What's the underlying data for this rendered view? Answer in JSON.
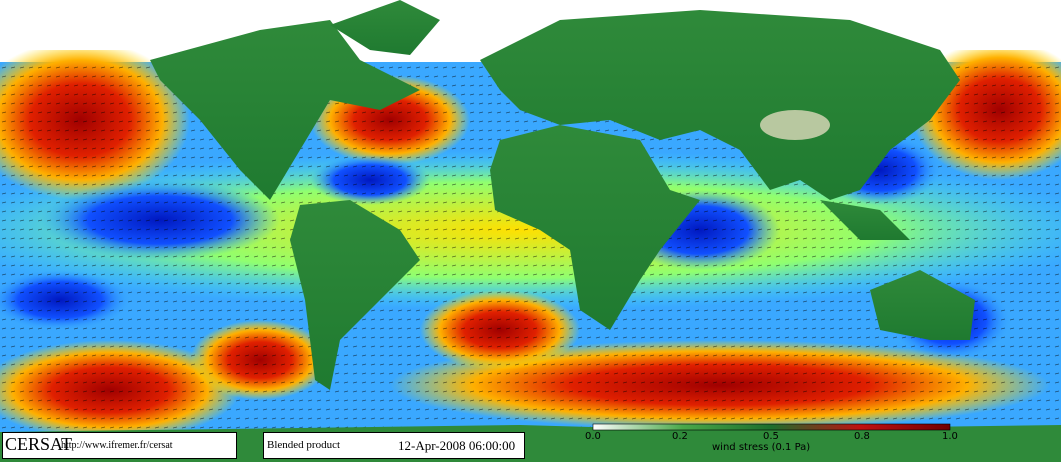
{
  "footer": {
    "logo": "CERSAT",
    "url": "http://www.ifremer.fr/cersat",
    "product": "Blended product",
    "date": "12-Apr-2008 06:00:00"
  },
  "colorbar": {
    "ticks": [
      "0.0",
      "0.2",
      "0.5",
      "0.8",
      "1.0"
    ],
    "label": "wind stress (0.1 Pa)"
  }
}
